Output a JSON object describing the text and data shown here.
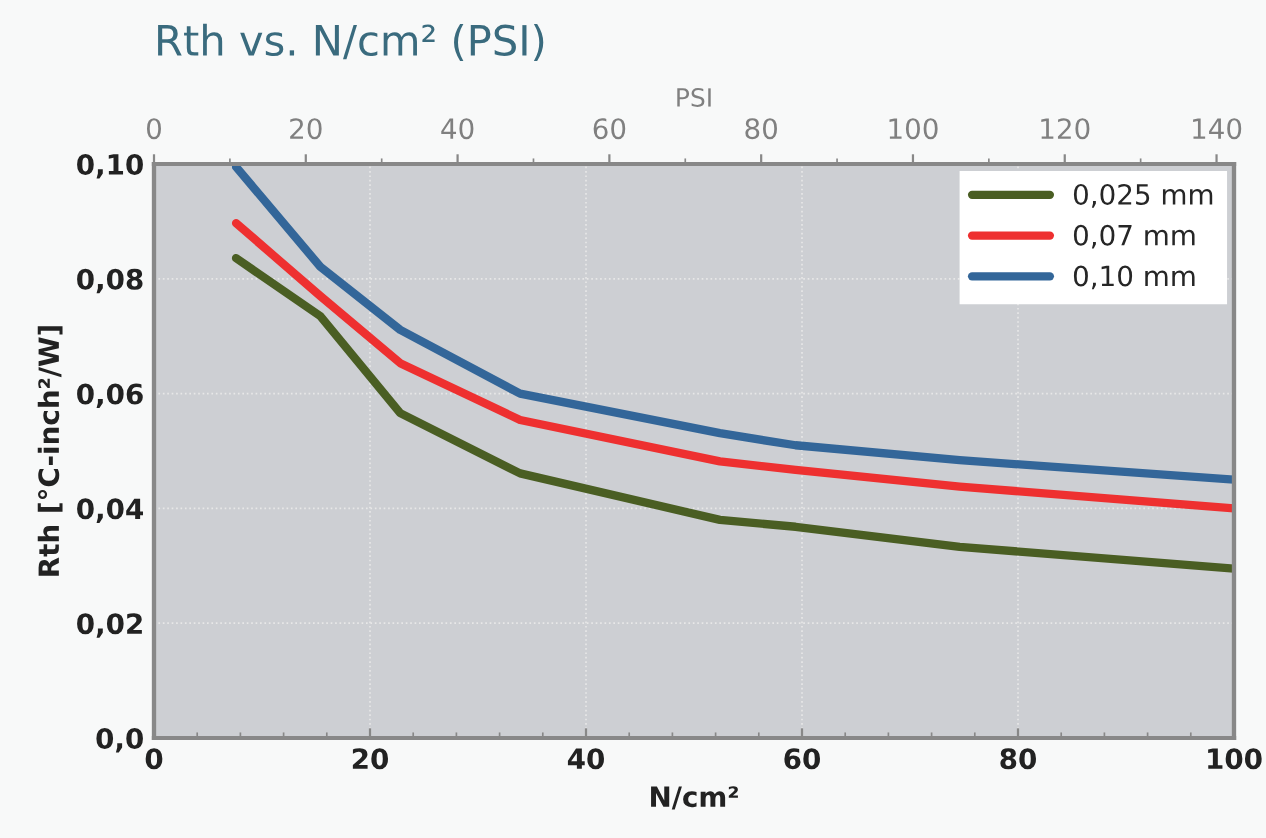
{
  "chart_data": {
    "type": "line",
    "title": "Rth vs. N/cm² (PSI)",
    "xlabel": "N/cm²",
    "ylabel": "Rth [°C-inch²/W]",
    "x2label": "PSI",
    "x": [
      7.6,
      15.4,
      22.8,
      33.9,
      52.4,
      59.4,
      74.6,
      100
    ],
    "series": [
      {
        "name": "0,025 mm",
        "color": "#4a5e23",
        "values": [
          0.0836,
          0.0735,
          0.0566,
          0.0461,
          0.038,
          0.0368,
          0.0333,
          0.0295
        ]
      },
      {
        "name": "0,07 mm",
        "color": "#ee3030",
        "values": [
          0.0897,
          0.077,
          0.0653,
          0.0554,
          0.0482,
          0.0467,
          0.0438,
          0.04
        ]
      },
      {
        "name": "0,10 mm",
        "color": "#336699",
        "values": [
          0.0995,
          0.0821,
          0.0711,
          0.06,
          0.0531,
          0.051,
          0.0484,
          0.045
        ]
      }
    ],
    "xlim": [
      0,
      100
    ],
    "xticks": [
      0,
      20,
      40,
      60,
      80,
      100
    ],
    "ylim": [
      0,
      0.1
    ],
    "yticks": [
      {
        "value": 0,
        "label": "0,0"
      },
      {
        "value": 0.02,
        "label": "0,02"
      },
      {
        "value": 0.04,
        "label": "0,04"
      },
      {
        "value": 0.06,
        "label": "0,06"
      },
      {
        "value": 0.08,
        "label": "0,08"
      },
      {
        "value": 0.1,
        "label": "0,10"
      }
    ],
    "x2lim": [
      0,
      142.3
    ],
    "x2ticks": [
      0,
      20,
      40,
      60,
      80,
      100,
      120,
      140
    ],
    "grid": true,
    "legend": "top right",
    "marker": "none",
    "line_style": "solid"
  }
}
